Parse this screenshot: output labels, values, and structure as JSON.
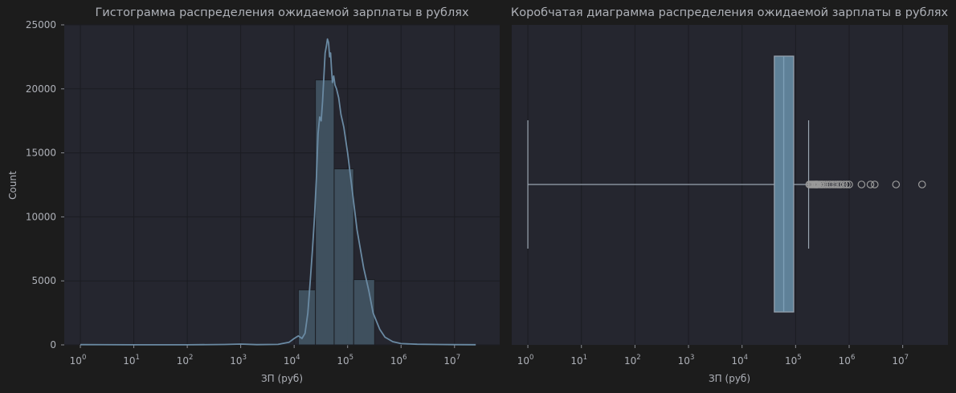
{
  "chart_data": [
    {
      "type": "histogram",
      "title": "Гистограмма распределения ожидаемой зарплаты в рублях",
      "xlabel": "ЗП (руб)",
      "ylabel": "Count",
      "xscale": "log",
      "xlim": [
        0.5,
        70000000
      ],
      "ylim": [
        0,
        25000
      ],
      "yticks": [
        "0",
        "5000",
        "10000",
        "15000",
        "20000",
        "25000"
      ],
      "xticks": [
        {
          "base": "10",
          "exp": "0"
        },
        {
          "base": "10",
          "exp": "1"
        },
        {
          "base": "10",
          "exp": "2"
        },
        {
          "base": "10",
          "exp": "3"
        },
        {
          "base": "10",
          "exp": "4"
        },
        {
          "base": "10",
          "exp": "5"
        },
        {
          "base": "10",
          "exp": "6"
        },
        {
          "base": "10",
          "exp": "7"
        }
      ],
      "grid": true,
      "bins": [
        {
          "x0": 12000,
          "x1": 25000,
          "count": 4300
        },
        {
          "x0": 25000,
          "x1": 56000,
          "count": 20700
        },
        {
          "x0": 56000,
          "x1": 130000,
          "count": 13750
        },
        {
          "x0": 130000,
          "x1": 320000,
          "count": 5100
        }
      ],
      "kde": [
        [
          1,
          20
        ],
        [
          10,
          5
        ],
        [
          100,
          8
        ],
        [
          500,
          30
        ],
        [
          1000,
          60
        ],
        [
          2000,
          20
        ],
        [
          5000,
          40
        ],
        [
          8000,
          200
        ],
        [
          10000,
          500
        ],
        [
          12000,
          700
        ],
        [
          14000,
          500
        ],
        [
          16000,
          900
        ],
        [
          18000,
          2500
        ],
        [
          20000,
          5000
        ],
        [
          22000,
          7500
        ],
        [
          24000,
          10000
        ],
        [
          26000,
          13000
        ],
        [
          28000,
          16500
        ],
        [
          30000,
          17800
        ],
        [
          32000,
          17500
        ],
        [
          34000,
          19000
        ],
        [
          36000,
          21000
        ],
        [
          38000,
          22800
        ],
        [
          40000,
          23300
        ],
        [
          42000,
          23900
        ],
        [
          44000,
          23600
        ],
        [
          46000,
          22500
        ],
        [
          48000,
          22800
        ],
        [
          50000,
          21500
        ],
        [
          52000,
          20500
        ],
        [
          55000,
          21000
        ],
        [
          58000,
          20300
        ],
        [
          62000,
          20000
        ],
        [
          68000,
          19300
        ],
        [
          75000,
          18000
        ],
        [
          85000,
          17000
        ],
        [
          100000,
          15000
        ],
        [
          120000,
          12300
        ],
        [
          150000,
          9000
        ],
        [
          200000,
          6000
        ],
        [
          250000,
          4200
        ],
        [
          300000,
          2500
        ],
        [
          400000,
          1200
        ],
        [
          500000,
          600
        ],
        [
          700000,
          250
        ],
        [
          1000000,
          100
        ],
        [
          2000000,
          50
        ],
        [
          5000000,
          30
        ],
        [
          10000000,
          20
        ],
        [
          25000000,
          10
        ]
      ],
      "colors": {
        "bar": "#435564",
        "line": "#6a8aa3"
      }
    },
    {
      "type": "box",
      "title": "Коробчатая диаграмма распределения ожидаемой зарплаты в рублях",
      "xlabel": "ЗП (руб)",
      "xscale": "log",
      "xlim": [
        0.5,
        70000000
      ],
      "xticks": [
        {
          "base": "10",
          "exp": "0"
        },
        {
          "base": "10",
          "exp": "1"
        },
        {
          "base": "10",
          "exp": "2"
        },
        {
          "base": "10",
          "exp": "3"
        },
        {
          "base": "10",
          "exp": "4"
        },
        {
          "base": "10",
          "exp": "5"
        },
        {
          "base": "10",
          "exp": "6"
        },
        {
          "base": "10",
          "exp": "7"
        }
      ],
      "grid": true,
      "box": {
        "whisker_low": 1,
        "q1": 40000,
        "median": 60000,
        "q3": 92000,
        "whisker_high": 175000
      },
      "outliers": [
        180000,
        190000,
        200000,
        210000,
        220000,
        230000,
        240000,
        250000,
        260000,
        280000,
        300000,
        320000,
        350000,
        380000,
        420000,
        450000,
        500000,
        550000,
        600000,
        650000,
        700000,
        800000,
        900000,
        1000000,
        1700000,
        2500000,
        3000000,
        7500000,
        23000000
      ],
      "colors": {
        "box": "#5f8198",
        "edge": "#9aa5b1",
        "outlier": "#9a9a9a"
      }
    }
  ]
}
